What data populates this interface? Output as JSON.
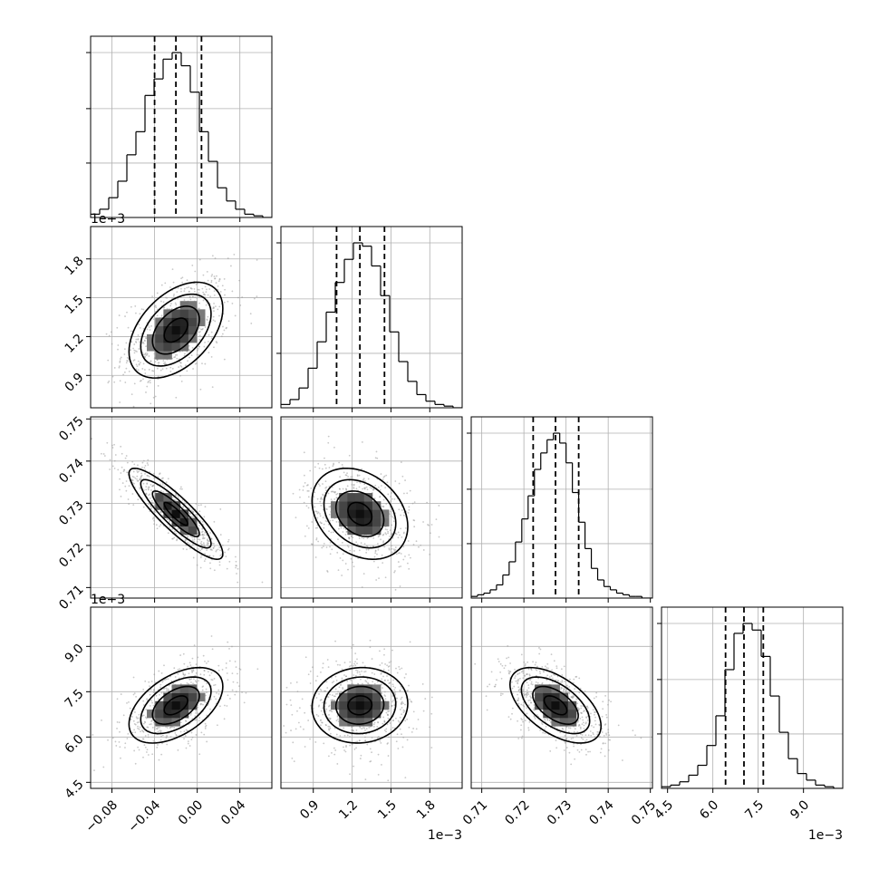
{
  "chart_data": {
    "type": "corner",
    "grid": true,
    "colors": {
      "hist_line": "#000000",
      "quantile_line": "#000000",
      "scatter": "#9a9a9a",
      "grid": "#b0b0b0"
    },
    "parameters": [
      {
        "range": [
          -0.1,
          0.07
        ],
        "ticks": [
          -0.08,
          -0.04,
          0.0,
          0.04
        ],
        "tick_labels": [
          "−0.08",
          "−0.04",
          "0.00",
          "0.04"
        ],
        "multiplier_label": "",
        "quantiles": [
          -0.04,
          -0.02,
          0.004
        ],
        "histogram": {
          "edges": [
            -0.1,
            -0.0915,
            -0.083,
            -0.0745,
            -0.066,
            -0.0575,
            -0.049,
            -0.0405,
            -0.032,
            -0.0235,
            -0.015,
            -0.0065,
            0.002,
            0.0105,
            0.019,
            0.0275,
            0.036,
            0.0445,
            0.053,
            0.0615,
            0.07
          ],
          "counts": [
            2,
            5,
            12,
            22,
            38,
            52,
            74,
            84,
            96,
            100,
            92,
            76,
            52,
            34,
            18,
            10,
            5,
            2,
            1,
            0
          ]
        }
      },
      {
        "range": [
          0.00065,
          0.00205
        ],
        "ticks": [
          0.0009,
          0.0012,
          0.0015,
          0.0018
        ],
        "tick_labels": [
          "0.9",
          "1.2",
          "1.5",
          "1.8"
        ],
        "multiplier_label": "1e−3",
        "quantiles": [
          0.00108,
          0.00126,
          0.00145
        ],
        "histogram": {
          "edges": [
            0.00065,
            0.00072,
            0.00079,
            0.00086,
            0.00093,
            0.001,
            0.00107,
            0.00114,
            0.00121,
            0.00128,
            0.00135,
            0.00142,
            0.00149,
            0.00156,
            0.00163,
            0.0017,
            0.00177,
            0.00184,
            0.00191,
            0.00198,
            0.00205
          ],
          "counts": [
            2,
            5,
            12,
            24,
            40,
            58,
            76,
            90,
            100,
            98,
            86,
            68,
            46,
            28,
            16,
            8,
            4,
            2,
            1,
            0
          ]
        }
      },
      {
        "range": [
          0.7075,
          0.7505
        ],
        "ticks": [
          0.71,
          0.72,
          0.73,
          0.74,
          0.75
        ],
        "tick_labels": [
          "0.71",
          "0.72",
          "0.73",
          "0.74",
          "0.75"
        ],
        "multiplier_label": "",
        "quantiles": [
          0.7222,
          0.7275,
          0.733
        ],
        "histogram": {
          "edges": [
            0.7075,
            0.709,
            0.7105,
            0.712,
            0.7135,
            0.715,
            0.7165,
            0.718,
            0.7195,
            0.721,
            0.7225,
            0.724,
            0.7255,
            0.727,
            0.7285,
            0.73,
            0.7315,
            0.733,
            0.7345,
            0.736,
            0.7375,
            0.739,
            0.7405,
            0.742,
            0.7435,
            0.745,
            0.7465,
            0.748,
            0.7495,
            0.7505
          ],
          "counts": [
            1,
            2,
            3,
            5,
            8,
            14,
            22,
            34,
            48,
            62,
            78,
            88,
            96,
            100,
            94,
            82,
            64,
            46,
            30,
            18,
            11,
            7,
            5,
            3,
            2,
            1,
            1,
            0,
            0
          ]
        }
      },
      {
        "range": [
          0.0043,
          0.0103
        ],
        "ticks": [
          0.0045,
          0.006,
          0.0075,
          0.009
        ],
        "tick_labels": [
          "4.5",
          "6.0",
          "7.5",
          "9.0"
        ],
        "multiplier_label": "1e−3",
        "quantiles": [
          0.00642,
          0.00703,
          0.00767
        ],
        "histogram": {
          "edges": [
            0.0043,
            0.0046,
            0.0049,
            0.0052,
            0.0055,
            0.0058,
            0.0061,
            0.0064,
            0.0067,
            0.007,
            0.0073,
            0.0076,
            0.0079,
            0.0082,
            0.0085,
            0.0088,
            0.0091,
            0.0094,
            0.0097,
            0.01,
            0.0103
          ],
          "counts": [
            1,
            2,
            4,
            8,
            14,
            26,
            44,
            72,
            94,
            100,
            96,
            80,
            56,
            34,
            18,
            9,
            5,
            2,
            1,
            0
          ]
        }
      }
    ],
    "pairs": [
      {
        "row": 1,
        "col": 0,
        "center": [
          -0.02,
          0.00125
        ],
        "correlation": 0.45
      },
      {
        "row": 2,
        "col": 0,
        "center": [
          -0.02,
          0.7275
        ],
        "correlation": -0.88
      },
      {
        "row": 2,
        "col": 1,
        "center": [
          0.00126,
          0.7275
        ],
        "correlation": -0.28
      },
      {
        "row": 3,
        "col": 0,
        "center": [
          -0.02,
          0.00705
        ],
        "correlation": 0.5
      },
      {
        "row": 3,
        "col": 1,
        "center": [
          0.00126,
          0.00705
        ],
        "correlation": 0.05
      },
      {
        "row": 3,
        "col": 2,
        "center": [
          0.7275,
          0.00705
        ],
        "correlation": -0.55
      }
    ]
  }
}
